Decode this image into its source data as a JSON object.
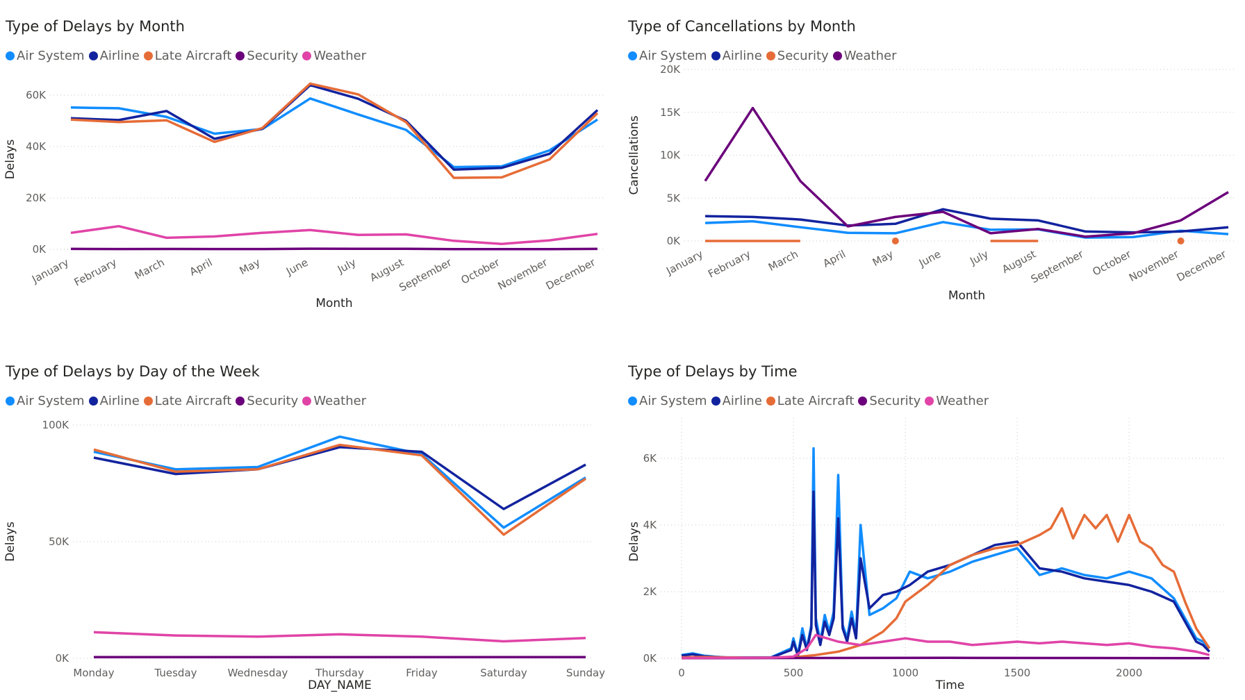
{
  "chart_data": [
    {
      "type": "line",
      "title": "Type of Delays by Month",
      "xlabel": "Month",
      "ylabel": "Delays",
      "ylim": [
        0,
        70000
      ],
      "yticks": [
        0,
        20000,
        40000,
        60000
      ],
      "ytick_labels": [
        "0K",
        "20K",
        "40K",
        "60K"
      ],
      "categories": [
        "January",
        "February",
        "March",
        "April",
        "May",
        "June",
        "July",
        "August",
        "September",
        "October",
        "November",
        "December"
      ],
      "series": [
        {
          "name": "Air System",
          "color": "#118DFF",
          "values": [
            55200,
            54900,
            51500,
            45000,
            46800,
            58700,
            52500,
            46500,
            32000,
            32300,
            38500,
            50500
          ]
        },
        {
          "name": "Airline",
          "color": "#12239E",
          "values": [
            51000,
            50300,
            53800,
            43000,
            46900,
            63900,
            58600,
            50000,
            31000,
            31700,
            37200,
            54200
          ]
        },
        {
          "name": "Late Aircraft",
          "color": "#E66C37",
          "values": [
            50500,
            49500,
            50200,
            41800,
            47200,
            64500,
            60300,
            49500,
            27800,
            28000,
            35000,
            53000
          ]
        },
        {
          "name": "Security",
          "color": "#6B007B",
          "values": [
            150,
            120,
            140,
            100,
            120,
            250,
            220,
            180,
            90,
            80,
            80,
            150
          ]
        },
        {
          "name": "Weather",
          "color": "#E044A7",
          "values": [
            6400,
            9000,
            4500,
            5000,
            6400,
            7500,
            5600,
            5800,
            3300,
            2100,
            3500,
            6000
          ]
        }
      ],
      "grid": true,
      "legend": "top-left"
    },
    {
      "type": "line",
      "title": "Type of Cancellations by Month",
      "xlabel": "Month",
      "ylabel": "Cancellations",
      "ylim": [
        0,
        20000
      ],
      "yticks": [
        0,
        5000,
        10000,
        15000,
        20000
      ],
      "ytick_labels": [
        "0K",
        "5K",
        "10K",
        "15K",
        "20K"
      ],
      "categories": [
        "January",
        "February",
        "March",
        "April",
        "May",
        "June",
        "July",
        "August",
        "September",
        "October",
        "November",
        "December"
      ],
      "series": [
        {
          "name": "Air System",
          "color": "#118DFF",
          "values": [
            2100,
            2300,
            1600,
            950,
            900,
            2200,
            1300,
            1350,
            400,
            450,
            1200,
            800
          ]
        },
        {
          "name": "Airline",
          "color": "#12239E",
          "values": [
            2900,
            2800,
            2500,
            1800,
            2000,
            3700,
            2600,
            2400,
            1100,
            1000,
            1100,
            1600
          ]
        },
        {
          "name": "Security",
          "color": "#E66C37",
          "values": [
            0,
            0,
            0,
            null,
            0,
            null,
            0,
            0,
            null,
            null,
            0,
            null
          ]
        },
        {
          "name": "Weather",
          "color": "#6B007B",
          "values": [
            7000,
            15500,
            7000,
            1700,
            2800,
            3400,
            900,
            1400,
            500,
            900,
            2400,
            5700
          ]
        }
      ],
      "grid": true,
      "legend": "top-left"
    },
    {
      "type": "line",
      "title": "Type of Delays by Day of the Week",
      "xlabel": "DAY_NAME",
      "ylabel": "Delays",
      "ylim": [
        0,
        100000
      ],
      "yticks": [
        0,
        50000,
        100000
      ],
      "ytick_labels": [
        "0K",
        "50K",
        "100K"
      ],
      "categories": [
        "Monday",
        "Tuesday",
        "Wednesday",
        "Thursday",
        "Friday",
        "Saturday",
        "Sunday"
      ],
      "series": [
        {
          "name": "Air System",
          "color": "#118DFF",
          "values": [
            88500,
            81000,
            82000,
            95000,
            87500,
            56000,
            77500
          ]
        },
        {
          "name": "Airline",
          "color": "#12239E",
          "values": [
            86000,
            79000,
            81000,
            90500,
            88500,
            64000,
            83000
          ]
        },
        {
          "name": "Late Aircraft",
          "color": "#E66C37",
          "values": [
            89500,
            80000,
            81000,
            91500,
            87000,
            53000,
            77000
          ]
        },
        {
          "name": "Security",
          "color": "#6B007B",
          "values": [
            500,
            500,
            500,
            500,
            500,
            500,
            500
          ]
        },
        {
          "name": "Weather",
          "color": "#E044A7",
          "values": [
            11200,
            9800,
            9300,
            10300,
            9300,
            7300,
            8700
          ]
        }
      ],
      "grid": true,
      "legend": "top-left"
    },
    {
      "type": "line",
      "title": "Type of Delays by Time",
      "xlabel": "Time",
      "ylabel": "Delays",
      "xlim": [
        0,
        2400
      ],
      "xticks": [
        0,
        500,
        1000,
        1500,
        2000
      ],
      "ylim": [
        0,
        7000
      ],
      "yticks": [
        0,
        2000,
        4000,
        6000
      ],
      "ytick_labels": [
        "0K",
        "2K",
        "4K",
        "6K"
      ],
      "series": [
        {
          "name": "Air System",
          "color": "#118DFF",
          "x": [
            0,
            50,
            100,
            150,
            200,
            400,
            490,
            500,
            520,
            540,
            560,
            580,
            590,
            600,
            620,
            640,
            660,
            680,
            700,
            720,
            740,
            760,
            780,
            800,
            840,
            900,
            960,
            1020,
            1100,
            1200,
            1300,
            1400,
            1500,
            1600,
            1700,
            1800,
            1900,
            2000,
            2100,
            2200,
            2300,
            2330,
            2359
          ],
          "y": [
            100,
            150,
            80,
            50,
            30,
            30,
            300,
            600,
            100,
            900,
            300,
            1000,
            6300,
            1200,
            500,
            1300,
            800,
            1400,
            5500,
            1000,
            600,
            1400,
            700,
            4000,
            1300,
            1500,
            1800,
            2600,
            2400,
            2600,
            2900,
            3100,
            3300,
            2500,
            2700,
            2500,
            2400,
            2600,
            2400,
            1800,
            600,
            500,
            300
          ]
        },
        {
          "name": "Airline",
          "color": "#12239E",
          "x": [
            0,
            50,
            100,
            150,
            200,
            400,
            490,
            500,
            520,
            540,
            560,
            580,
            590,
            600,
            620,
            640,
            660,
            680,
            700,
            720,
            740,
            760,
            780,
            800,
            840,
            900,
            960,
            1020,
            1100,
            1200,
            1300,
            1400,
            1500,
            1600,
            1700,
            1800,
            1900,
            2000,
            2100,
            2200,
            2300,
            2330,
            2359
          ],
          "y": [
            80,
            120,
            60,
            40,
            20,
            20,
            250,
            500,
            80,
            700,
            250,
            900,
            5000,
            1000,
            400,
            1100,
            700,
            1200,
            4200,
            900,
            500,
            1200,
            600,
            3000,
            1500,
            1900,
            2000,
            2200,
            2600,
            2800,
            3100,
            3400,
            3500,
            2700,
            2600,
            2400,
            2300,
            2200,
            2000,
            1700,
            500,
            400,
            200
          ]
        },
        {
          "name": "Late Aircraft",
          "color": "#E66C37",
          "x": [
            0,
            100,
            200,
            300,
            400,
            500,
            600,
            700,
            800,
            900,
            960,
            1000,
            1100,
            1200,
            1300,
            1400,
            1500,
            1600,
            1650,
            1700,
            1750,
            1800,
            1850,
            1900,
            1950,
            2000,
            2050,
            2100,
            2150,
            2200,
            2250,
            2300,
            2359
          ],
          "y": [
            30,
            40,
            30,
            20,
            20,
            30,
            100,
            200,
            400,
            800,
            1200,
            1700,
            2200,
            2800,
            3100,
            3300,
            3400,
            3700,
            3900,
            4500,
            3600,
            4300,
            3900,
            4300,
            3500,
            4300,
            3500,
            3300,
            2800,
            2600,
            1700,
            900,
            300
          ]
        },
        {
          "name": "Security",
          "color": "#6B007B",
          "x": [
            0,
            600,
            1200,
            1800,
            2359
          ],
          "y": [
            5,
            10,
            15,
            10,
            5
          ]
        },
        {
          "name": "Weather",
          "color": "#E044A7",
          "x": [
            0,
            400,
            500,
            560,
            600,
            700,
            800,
            900,
            1000,
            1100,
            1200,
            1300,
            1400,
            1500,
            1600,
            1700,
            1800,
            1900,
            2000,
            2100,
            2200,
            2300,
            2359
          ],
          "y": [
            10,
            20,
            50,
            300,
            700,
            500,
            400,
            500,
            600,
            500,
            500,
            400,
            450,
            500,
            450,
            500,
            450,
            400,
            450,
            350,
            300,
            200,
            100
          ]
        }
      ],
      "grid": true,
      "legend": "top-left"
    }
  ]
}
